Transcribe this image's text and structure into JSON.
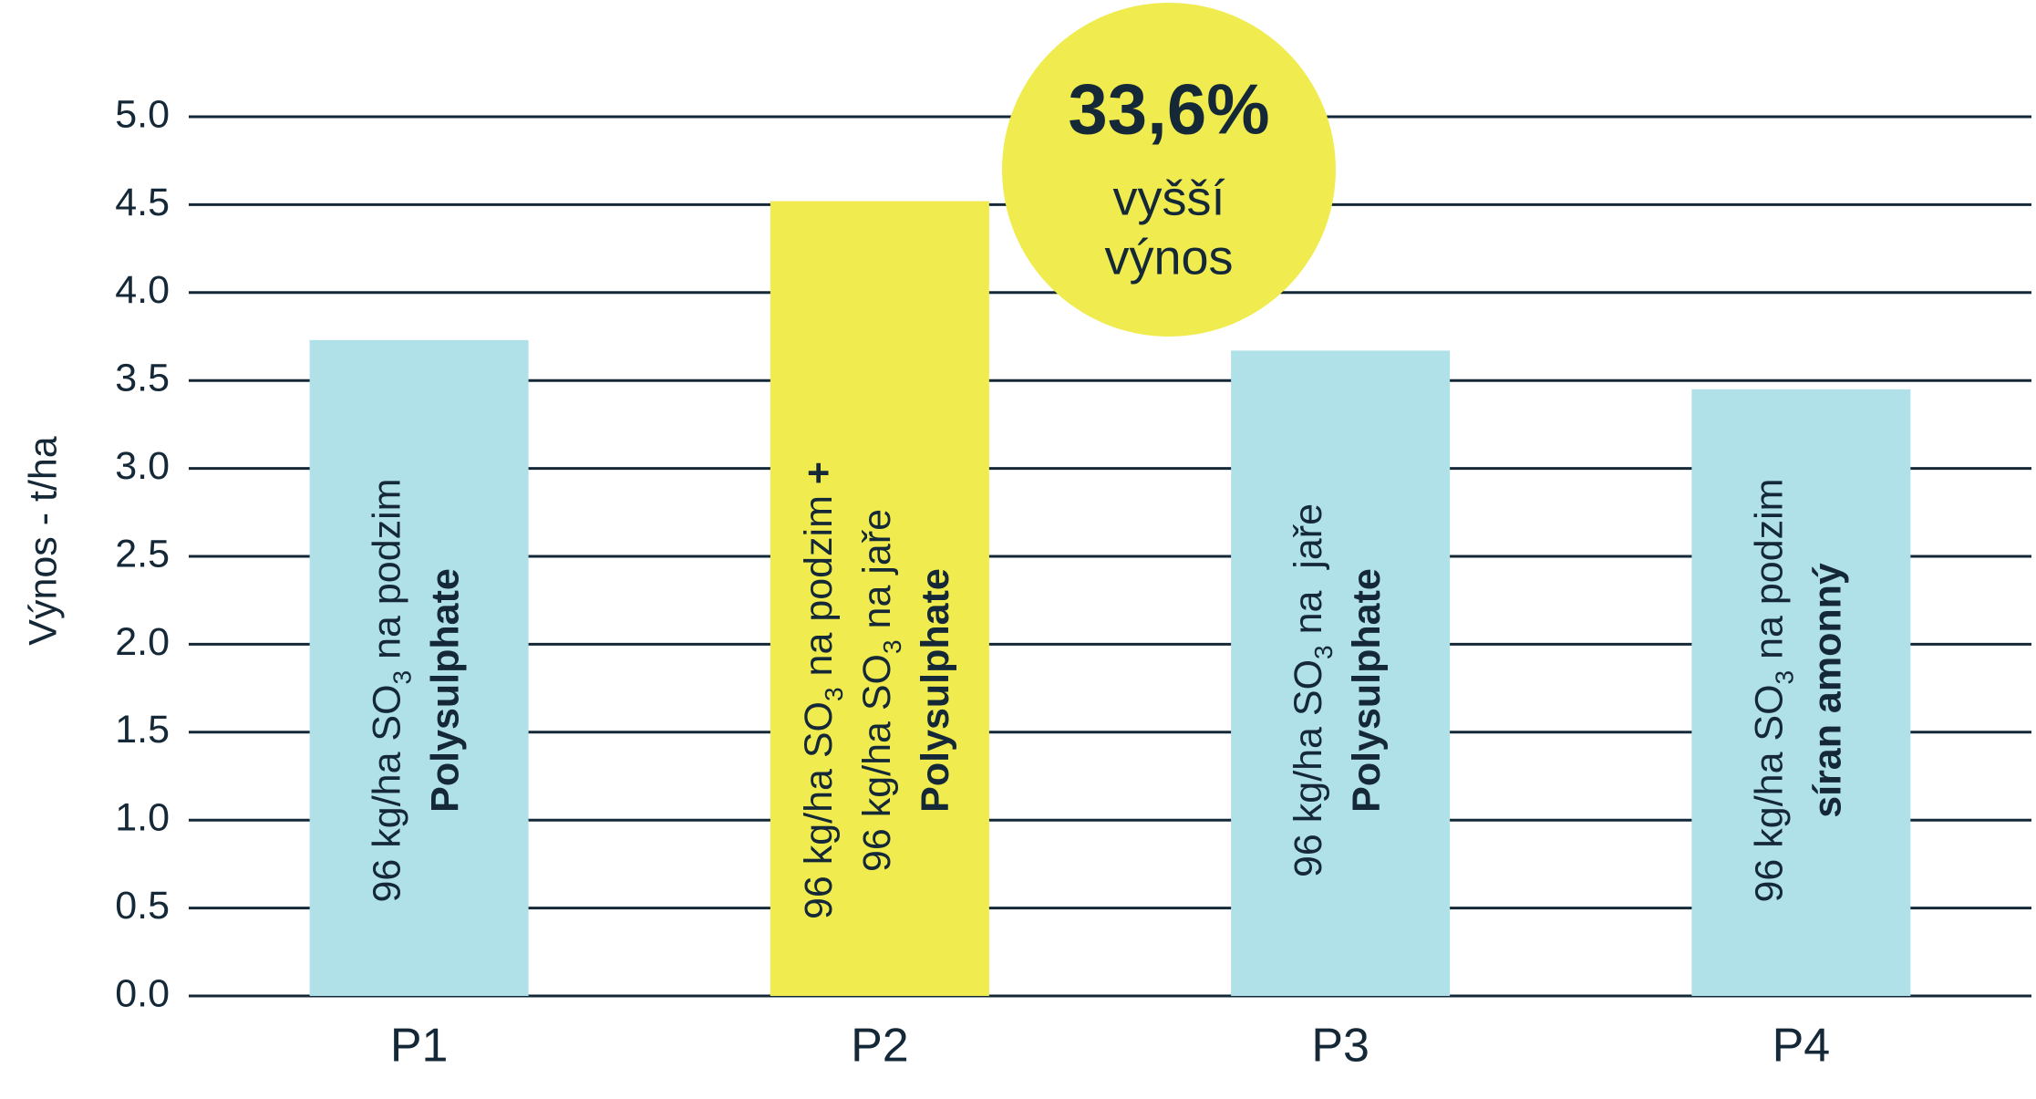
{
  "chart_data": {
    "type": "bar",
    "y_label": "Výnos - t/ha",
    "categories": [
      "P1",
      "P2",
      "P3",
      "P4"
    ],
    "values": [
      3.73,
      4.52,
      3.67,
      3.45
    ],
    "colors": [
      "#b0e0e8",
      "#f0ec50",
      "#b0e0e8",
      "#b0e0e8"
    ],
    "ylim": [
      0,
      5
    ],
    "yticks": [
      {
        "value": 0,
        "label": "0.0"
      },
      0.5,
      {
        "value": 1,
        "label": "1.0"
      },
      1.5,
      {
        "value": 2,
        "label": "2.0"
      },
      2.5,
      {
        "value": 3,
        "label": "3.0"
      },
      3.5,
      {
        "value": 4,
        "label": "4.0"
      },
      4.5,
      {
        "value": 5,
        "label": "5.0"
      }
    ],
    "grid": true,
    "bar_labels": [
      [
        [
          {
            "t": "96 kg/ha SO"
          },
          {
            "t": "3",
            "sub": true
          },
          {
            "t": " na podzim"
          }
        ],
        [
          {
            "t": "Polysulphate",
            "bold": true
          }
        ]
      ],
      [
        [
          {
            "t": "96 kg/ha SO"
          },
          {
            "t": "3",
            "sub": true
          },
          {
            "t": " na podzim "
          },
          {
            "t": "+",
            "bold": true
          }
        ],
        [
          {
            "t": "96 kg/ha SO"
          },
          {
            "t": "3",
            "sub": true
          },
          {
            "t": " na jaře"
          }
        ],
        [
          {
            "t": "Polysulphate",
            "bold": true
          }
        ]
      ],
      [
        [
          {
            "t": "96 kg/ha SO"
          },
          {
            "t": "3",
            "sub": true
          },
          {
            "t": " na  jaře"
          }
        ],
        [
          {
            "t": "Polysulphate",
            "bold": true
          }
        ]
      ],
      [
        [
          {
            "t": "96 kg/ha SO"
          },
          {
            "t": "3",
            "sub": true
          },
          {
            "t": " na podzim"
          }
        ],
        [
          {
            "t": "síran amonný",
            "bold": true
          }
        ]
      ]
    ],
    "badge": {
      "value": "33,6%",
      "lines": [
        "vyšší",
        "výnos"
      ],
      "color": "#f0ec50"
    }
  }
}
